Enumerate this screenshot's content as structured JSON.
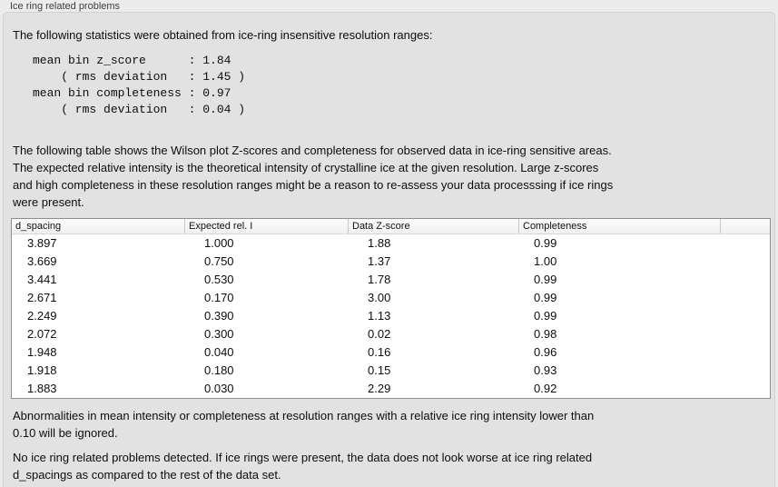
{
  "window": {
    "title": "Ice ring related problems"
  },
  "panel": {
    "intro": "The following statistics were obtained from ice-ring insensitive resolution ranges:",
    "stats_block": "mean bin z_score      : 1.84\n    ( rms deviation   : 1.45 )\nmean bin completeness : 0.97\n    ( rms deviation   : 0.04 )",
    "stats": {
      "mean_bin_z_score": "1.84",
      "mean_bin_z_score_rms_deviation": "1.45",
      "mean_bin_completeness": "0.97",
      "mean_bin_completeness_rms_deviation": "0.04"
    },
    "table_description": "The following table shows the Wilson plot Z-scores and completeness for observed data in ice-ring sensitive areas.\nThe expected relative intensity is the theoretical intensity of crystalline ice at the given resolution. Large z-scores\nand high completeness in these resolution ranges might be a reason to re-assess your data processsing if ice rings\nwere present.",
    "table": {
      "columns": [
        "d_spacing",
        "Expected rel. I",
        "Data Z-score",
        "Completeness"
      ],
      "rows": [
        [
          "3.897",
          "1.000",
          "1.88",
          "0.99"
        ],
        [
          "3.669",
          "0.750",
          "1.37",
          "1.00"
        ],
        [
          "3.441",
          "0.530",
          "1.78",
          "0.99"
        ],
        [
          "2.671",
          "0.170",
          "3.00",
          "0.99"
        ],
        [
          "2.249",
          "0.390",
          "1.13",
          "0.99"
        ],
        [
          "2.072",
          "0.300",
          "0.02",
          "0.98"
        ],
        [
          "1.948",
          "0.040",
          "0.16",
          "0.96"
        ],
        [
          "1.918",
          "0.180",
          "0.15",
          "0.93"
        ],
        [
          "1.883",
          "0.030",
          "2.29",
          "0.92"
        ]
      ]
    },
    "ignore_note": "Abnormalities in mean intensity or completeness at resolution ranges with a relative ice ring intensity lower than\n0.10 will be ignored.",
    "conclusion": "No ice ring related problems detected. If ice rings were present, the data does not look worse at ice ring related\nd_spacings as compared to the rest of the data set."
  },
  "colors": {
    "page_background": "#ececec",
    "panel_background": "#e2e2e2",
    "panel_border": "#d2d2d2",
    "table_background": "#ffffff",
    "table_border": "#8e8e8e",
    "header_divider": "#c8c8c8",
    "text": "#0d0d0d"
  }
}
